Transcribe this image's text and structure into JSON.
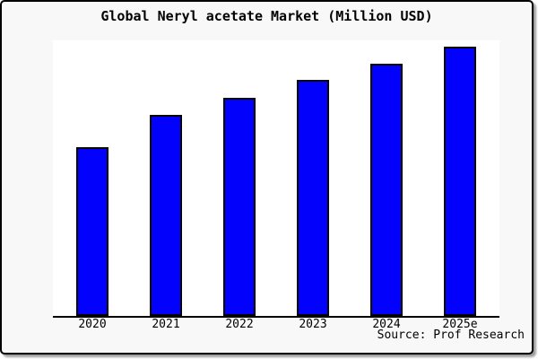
{
  "frame": {
    "background": "#f8f8f8",
    "plot_background": "#ffffff",
    "border_color": "#000000",
    "shadow_color": "#9f9f9f"
  },
  "chart_data": {
    "type": "bar",
    "title": "Global Neryl acetate Market (Million USD)",
    "categories": [
      "2020",
      "2021",
      "2022",
      "2023",
      "2024",
      "2025e"
    ],
    "values_relative": [
      188,
      224,
      243,
      263,
      281,
      300
    ],
    "values_note": "no y-axis or value labels shown in chart; values are relative bar heights (pixels), max bar normalized to 300",
    "xlabel": "",
    "ylabel": "",
    "y_axis_shown": false,
    "grid": false,
    "legend": false,
    "bar_color": "#0202fc",
    "bar_border_color": "#000000",
    "source": "Source: Prof Research"
  }
}
